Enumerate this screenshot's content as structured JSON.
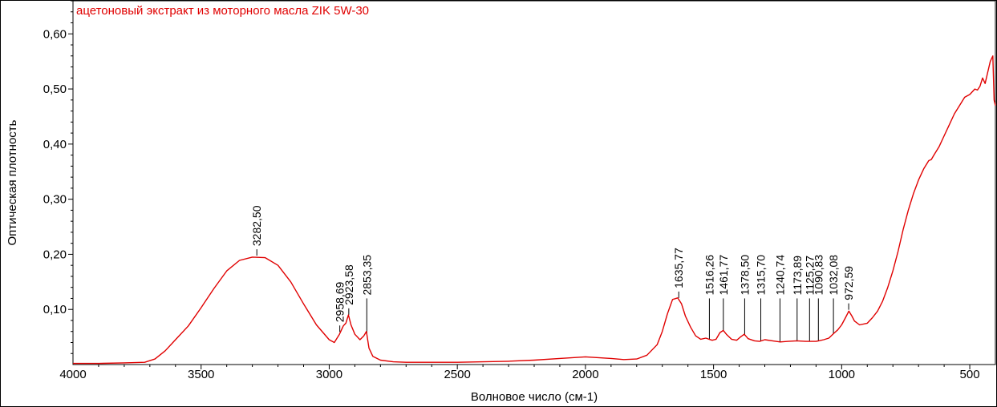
{
  "chart_data": {
    "type": "line",
    "title": "ацетоновый экстракт из моторного масла  ZIK  5W-30",
    "xlabel": "Волновое число (см-1)",
    "ylabel": "Оптическая плотность",
    "xlim": [
      4000,
      400
    ],
    "ylim": [
      0.0,
      0.66
    ],
    "x_ticks": [
      4000,
      3500,
      3000,
      2500,
      2000,
      1500,
      1000,
      500
    ],
    "x_tick_labels": [
      "4000",
      "3500",
      "3000",
      "2500",
      "2000",
      "1500",
      "1000",
      "500"
    ],
    "y_ticks": [
      0.1,
      0.2,
      0.3,
      0.4,
      0.5,
      0.6
    ],
    "y_tick_labels": [
      "0,10",
      "0,20",
      "0,30",
      "0,40",
      "0,50",
      "0,60"
    ],
    "line_color": "#e00000",
    "series": [
      {
        "name": "ацетоновый экстракт из моторного масла  ZIK  5W-30",
        "x": [
          4000,
          3900,
          3800,
          3720,
          3680,
          3640,
          3600,
          3550,
          3500,
          3450,
          3400,
          3350,
          3300,
          3250,
          3200,
          3150,
          3100,
          3050,
          3000,
          2980,
          2960,
          2945,
          2935,
          2925,
          2915,
          2900,
          2880,
          2865,
          2855,
          2845,
          2830,
          2800,
          2750,
          2700,
          2600,
          2500,
          2400,
          2300,
          2200,
          2100,
          2000,
          1900,
          1850,
          1800,
          1760,
          1720,
          1700,
          1680,
          1660,
          1640,
          1625,
          1610,
          1590,
          1570,
          1550,
          1530,
          1518,
          1505,
          1490,
          1475,
          1462,
          1450,
          1430,
          1410,
          1395,
          1380,
          1365,
          1340,
          1320,
          1300,
          1270,
          1240,
          1210,
          1175,
          1140,
          1125,
          1100,
          1090,
          1070,
          1050,
          1032,
          1015,
          1000,
          985,
          972,
          960,
          950,
          930,
          900,
          880,
          860,
          840,
          820,
          800,
          780,
          760,
          740,
          720,
          700,
          680,
          660,
          650,
          640,
          620,
          600,
          580,
          560,
          540,
          520,
          500,
          480,
          470,
          460,
          450,
          440,
          430,
          420,
          410,
          405,
          400
        ],
        "values": [
          0.002,
          0.002,
          0.003,
          0.004,
          0.01,
          0.025,
          0.045,
          0.07,
          0.103,
          0.138,
          0.17,
          0.189,
          0.195,
          0.194,
          0.18,
          0.15,
          0.11,
          0.072,
          0.045,
          0.04,
          0.055,
          0.07,
          0.075,
          0.09,
          0.072,
          0.055,
          0.045,
          0.052,
          0.06,
          0.03,
          0.015,
          0.008,
          0.005,
          0.004,
          0.004,
          0.004,
          0.005,
          0.006,
          0.008,
          0.011,
          0.014,
          0.011,
          0.009,
          0.01,
          0.017,
          0.036,
          0.06,
          0.092,
          0.118,
          0.121,
          0.11,
          0.088,
          0.068,
          0.052,
          0.046,
          0.048,
          0.046,
          0.044,
          0.046,
          0.058,
          0.062,
          0.055,
          0.046,
          0.044,
          0.05,
          0.055,
          0.047,
          0.043,
          0.042,
          0.045,
          0.043,
          0.041,
          0.042,
          0.043,
          0.042,
          0.042,
          0.042,
          0.043,
          0.045,
          0.048,
          0.056,
          0.063,
          0.072,
          0.085,
          0.097,
          0.088,
          0.079,
          0.072,
          0.075,
          0.085,
          0.097,
          0.115,
          0.14,
          0.17,
          0.205,
          0.245,
          0.28,
          0.31,
          0.335,
          0.355,
          0.37,
          0.372,
          0.38,
          0.395,
          0.415,
          0.435,
          0.455,
          0.47,
          0.485,
          0.49,
          0.5,
          0.498,
          0.505,
          0.52,
          0.51,
          0.53,
          0.55,
          0.56,
          0.48,
          0.47
        ]
      }
    ],
    "peak_labels": [
      {
        "x": 3282.5,
        "label": "3282,50",
        "marker": "short"
      },
      {
        "x": 2958.69,
        "label": "2958,69",
        "marker": "short"
      },
      {
        "x": 2923.58,
        "label": "2923,58",
        "marker": "short"
      },
      {
        "x": 2853.35,
        "label": "2853,35",
        "marker": "line"
      },
      {
        "x": 1635.77,
        "label": "1635,77",
        "marker": "short"
      },
      {
        "x": 1516.26,
        "label": "1516,26",
        "marker": "line"
      },
      {
        "x": 1461.77,
        "label": "1461,77",
        "marker": "line"
      },
      {
        "x": 1378.5,
        "label": "1378,50",
        "marker": "line"
      },
      {
        "x": 1315.7,
        "label": "1315,70",
        "marker": "line"
      },
      {
        "x": 1240.74,
        "label": "1240,74",
        "marker": "line"
      },
      {
        "x": 1173.89,
        "label": "1173,89",
        "marker": "line"
      },
      {
        "x": 1125.27,
        "label": "1125,27",
        "marker": "line"
      },
      {
        "x": 1090.83,
        "label": "1090,83",
        "marker": "line"
      },
      {
        "x": 1032.08,
        "label": "1032,08",
        "marker": "line"
      },
      {
        "x": 972.59,
        "label": "972,59",
        "marker": "short"
      }
    ]
  }
}
